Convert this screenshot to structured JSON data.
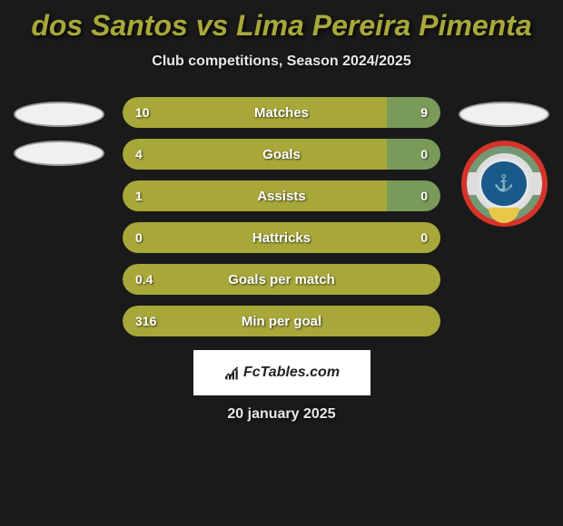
{
  "title": "dos Santos vs Lima Pereira Pimenta",
  "subtitle": "Club competitions, Season 2024/2025",
  "date": "20 january 2025",
  "branding": "FcTables.com",
  "colors": {
    "title": "#a8a83a",
    "text_light": "#e8e8e8",
    "bar_left": "#a8a83a",
    "bar_right": "#7a9a5a",
    "bar_track": "#333333",
    "background": "#1a1a1a",
    "ellipse_fill": "#f0f0f0",
    "footer_bg": "#ffffff"
  },
  "left_player": {
    "show_badge": false,
    "ellipses": 2
  },
  "right_player": {
    "show_badge": true,
    "ellipses": 1
  },
  "stats": [
    {
      "label": "Matches",
      "left_val": "10",
      "right_val": "9",
      "left_pct": 83,
      "right_pct": 17
    },
    {
      "label": "Goals",
      "left_val": "4",
      "right_val": "0",
      "left_pct": 83,
      "right_pct": 17
    },
    {
      "label": "Assists",
      "left_val": "1",
      "right_val": "0",
      "left_pct": 83,
      "right_pct": 17
    },
    {
      "label": "Hattricks",
      "left_val": "0",
      "right_val": "0",
      "left_pct": 100,
      "right_pct": 0
    },
    {
      "label": "Goals per match",
      "left_val": "0.4",
      "right_val": "",
      "left_pct": 100,
      "right_pct": 0
    },
    {
      "label": "Min per goal",
      "left_val": "316",
      "right_val": "",
      "left_pct": 100,
      "right_pct": 0
    }
  ]
}
